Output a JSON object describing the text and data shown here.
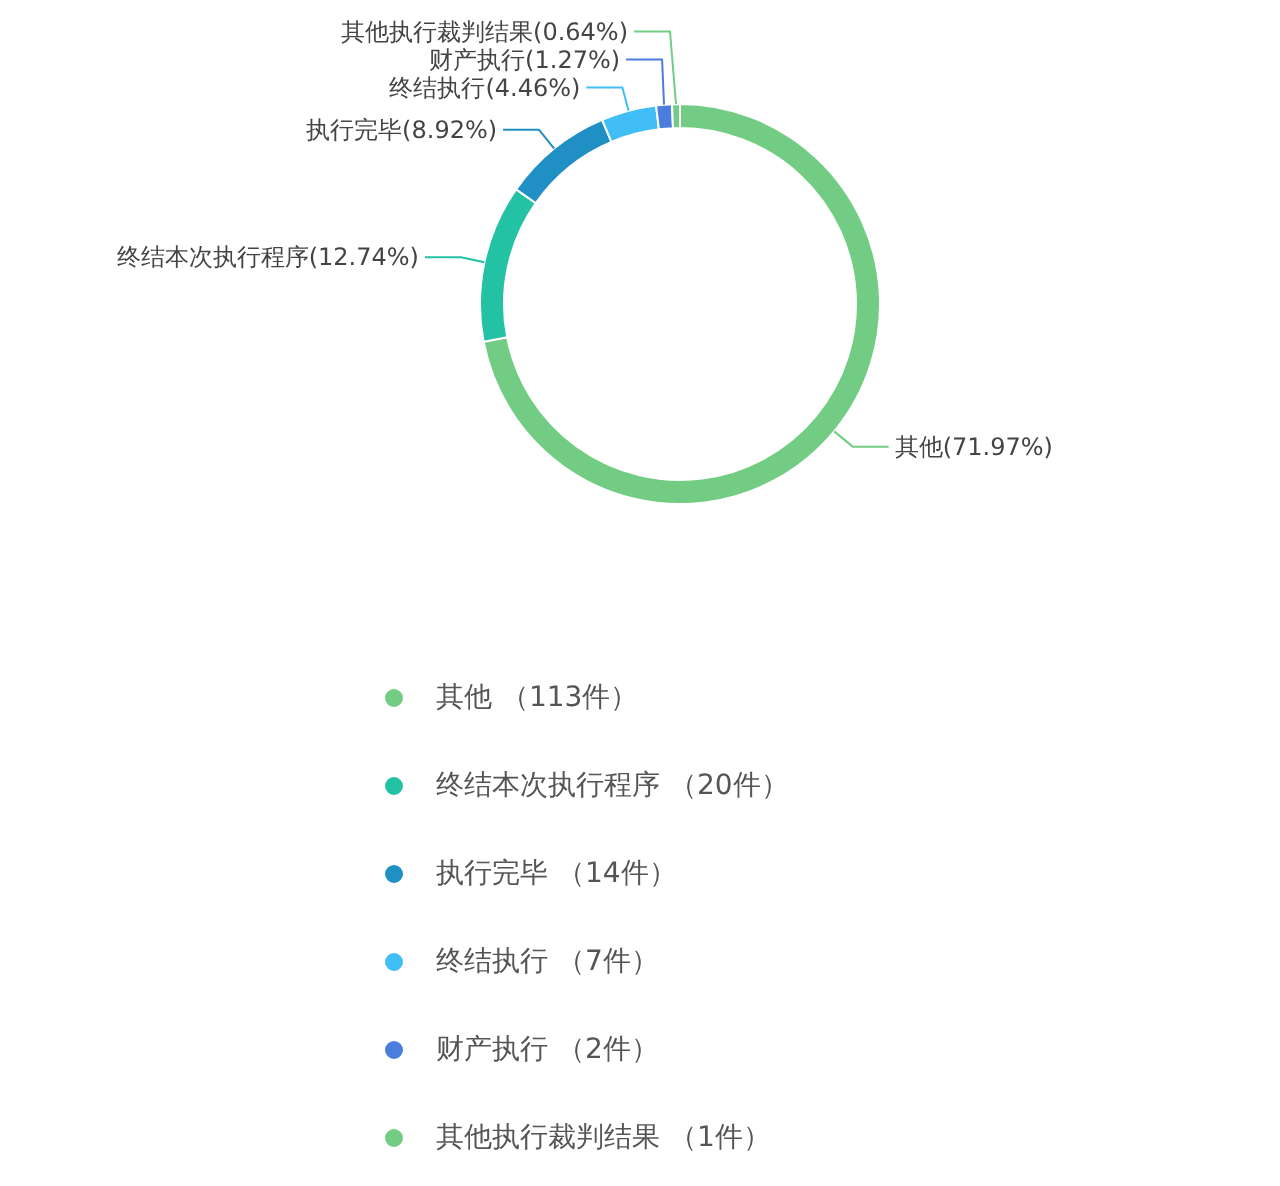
{
  "chart_data": {
    "type": "donut",
    "categories": [
      "其他 （113件）",
      "终结本次执行程序 （20件）",
      "执行完毕 （14件）",
      "终结执行 （7件）",
      "财产执行 （2件）",
      "其他执行裁判结果 （1件）"
    ],
    "values": [
      113,
      20,
      14,
      7,
      2,
      1
    ],
    "colors": [
      "#73cc84",
      "#23c2a4",
      "#1f8fc4",
      "#40bef5",
      "#4a7ddd",
      "#73cc84"
    ],
    "value_labels": [
      "其他(71.97%)",
      "终结本次执行程序(12.74%)",
      "执行完毕(8.92%)",
      "终结执行(4.46%)",
      "财产执行(1.27%)",
      "其他执行裁判结果(0.64%)"
    ],
    "legend": "bottom"
  }
}
